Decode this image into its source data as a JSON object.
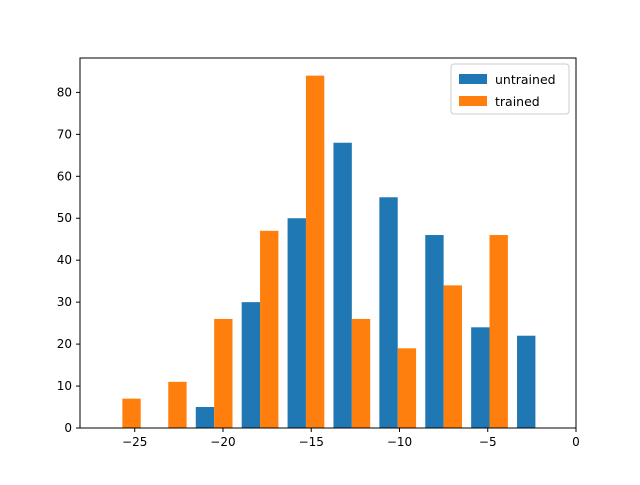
{
  "chart_data": {
    "type": "bar",
    "title": "",
    "xlabel": "",
    "ylabel": "",
    "xlim": [
      -28.1,
      0
    ],
    "ylim": [
      0,
      88.2
    ],
    "xticks": [
      -25,
      -20,
      -15,
      -10,
      -5,
      0
    ],
    "xtick_labels": [
      "−25",
      "−20",
      "−15",
      "−10",
      "−5",
      "0"
    ],
    "yticks": [
      0,
      10,
      20,
      30,
      40,
      50,
      60,
      70,
      80
    ],
    "ytick_labels": [
      "0",
      "10",
      "20",
      "30",
      "40",
      "50",
      "60",
      "70",
      "80"
    ],
    "bin_edges": [
      -27.0,
      -24.4,
      -21.8,
      -19.2,
      -16.6,
      -14.0,
      -11.4,
      -8.8,
      -6.2,
      -3.6,
      -1.0
    ],
    "grid": false,
    "legend_position": "upper right",
    "series": [
      {
        "name": "untrained",
        "color": "#1f77b4",
        "values": [
          0,
          0,
          5,
          30,
          50,
          68,
          55,
          46,
          24,
          22
        ]
      },
      {
        "name": "trained",
        "color": "#ff7f0e",
        "values": [
          7,
          11,
          26,
          47,
          84,
          26,
          19,
          34,
          46,
          0
        ]
      }
    ]
  }
}
